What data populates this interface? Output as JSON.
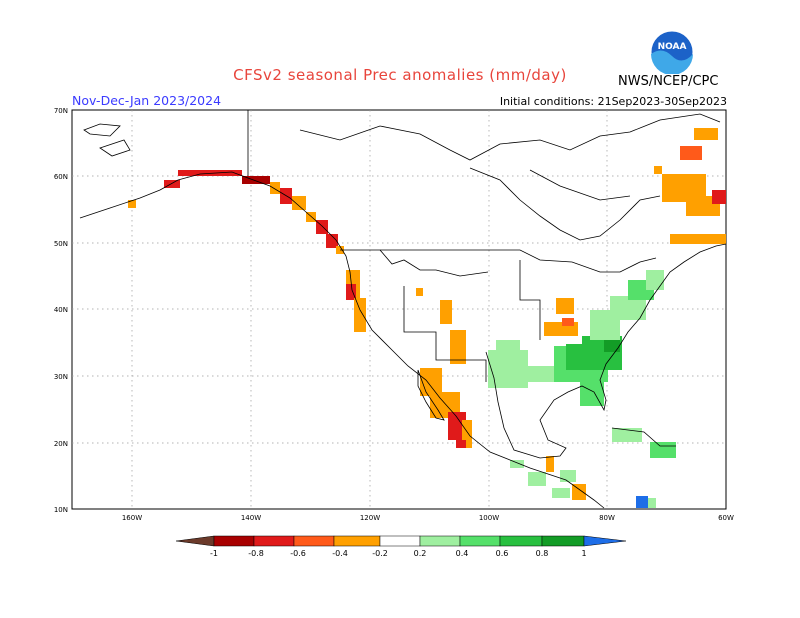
{
  "header": {
    "title": "CFSv2 seasonal Prec anomalies (mm/day)",
    "period": "Nov-Dec-Jan 2023/2024",
    "initial_conditions": "Initial conditions: 21Sep2023-30Sep2023",
    "agency": "NWS/NCEP/CPC",
    "logo_text": "NOAA"
  },
  "axes": {
    "lat_labels": [
      "70N",
      "60N",
      "50N",
      "40N",
      "30N",
      "20N",
      "10N"
    ],
    "lon_labels": [
      "160W",
      "140W",
      "120W",
      "100W",
      "80W",
      "60W"
    ]
  },
  "colorbar": {
    "labels": [
      "-1",
      "-0.8",
      "-0.6",
      "-0.4",
      "-0.2",
      "0.2",
      "0.4",
      "0.6",
      "0.8",
      "1"
    ],
    "colors": [
      "#6b3a2a",
      "#a80000",
      "#e01a1a",
      "#ff5a1a",
      "#ffa000",
      "#ffffff",
      "#9fefa0",
      "#55e06a",
      "#28c040",
      "#139c26",
      "#1e6ee8"
    ]
  }
}
